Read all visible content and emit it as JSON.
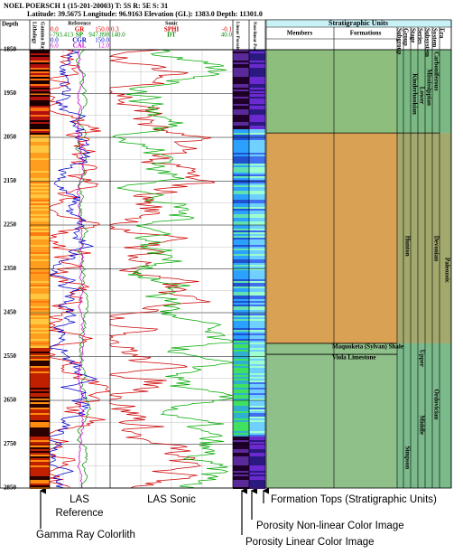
{
  "header": {
    "title": "NOEL POERSCH 1 (15-201-20003) T: 5S R: 5E S: 31",
    "location": "Latitude: 39.5675 Longitude: 96.9163 Elevation (GL): 1383.0 Depth: 11301.0"
  },
  "tracks": {
    "depth": "Depth",
    "lithology": "Lithology",
    "gamma_ray": "Gamma Ray",
    "reference": "Reference",
    "sonic": "Sonic",
    "linear": "Linear Porosity",
    "nonlinear": "Non-linear Porosity",
    "strat": "Stratigraphic Units"
  },
  "reference_curves": [
    {
      "min": "0.0",
      "name": "GR",
      "max": "150.0"
    },
    {
      "min": "-793.413",
      "name": "SP",
      "max": "947.898"
    },
    {
      "min": "0.0",
      "name": "CGR",
      "max": "150.0"
    },
    {
      "min": "6.0",
      "name": "CAL",
      "max": "12.0"
    }
  ],
  "sonic_curves": [
    {
      "min": "0.3",
      "name": "SPHI",
      "max": "-0.1"
    },
    {
      "min": "140.0",
      "name": "DT",
      "max": "40.0"
    }
  ],
  "depths": [
    1850,
    1950,
    2050,
    2150,
    2250,
    2350,
    2450,
    2550,
    2650,
    2750,
    2850
  ],
  "strat_columns": [
    "Members",
    "Formations",
    "Subgroup",
    "Group",
    "Stage",
    "Series",
    "Subsystem",
    "System",
    "Era"
  ],
  "formations": [
    "Maquoketa (Sylvan) Shale",
    "Viola Limestone"
  ],
  "units": [
    "Kinderhookian",
    "Lower",
    "Mississippian",
    "Carboniferous",
    "Hunton",
    "Devonian",
    "Paleozoic",
    "Upper",
    "Ordovician",
    "Middle",
    "Simpson"
  ],
  "annotations": {
    "reference_1": "LAS",
    "reference_2": "Reference",
    "colorlith": "Gamma Ray Colorlith",
    "sonic": "LAS Sonic",
    "tops": "Formation Tops (Stratigraphic Units)",
    "nonlinear": "Porosity Non-linear Color Image",
    "linear": "Porosity Linear Color Image"
  }
}
